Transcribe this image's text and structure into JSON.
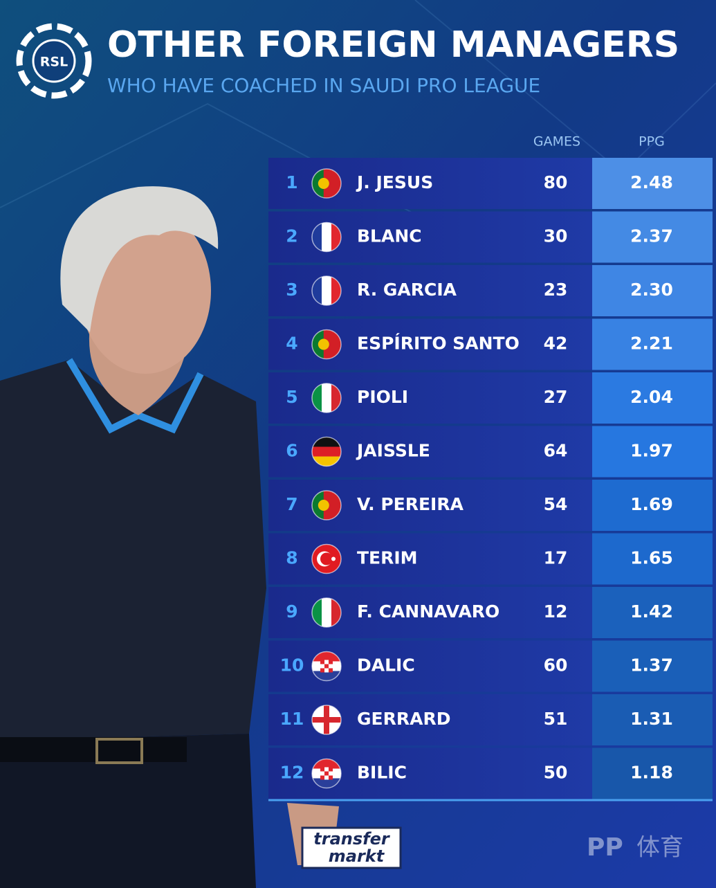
{
  "header": {
    "logo": "RSL",
    "title": "OTHER FOREIGN MANAGERS",
    "subtitle": "WHO HAVE COACHED IN SAUDI PRO LEAGUE"
  },
  "table": {
    "columns": [
      "GAMES",
      "PPG"
    ],
    "rows": [
      [
        1,
        "J. JESUS",
        80,
        "2.48"
      ],
      [
        2,
        "BLANC",
        30,
        "2.37"
      ],
      [
        3,
        "R. GARCIA",
        23,
        "2.30"
      ],
      [
        4,
        "ESPÍRITO SANTO",
        42,
        "2.21"
      ],
      [
        5,
        "PIOLI",
        27,
        "2.04"
      ],
      [
        6,
        "JAISSLE",
        64,
        "1.97"
      ],
      [
        7,
        "V. PEREIRA",
        54,
        "1.69"
      ],
      [
        8,
        "TERIM",
        17,
        "1.65"
      ],
      [
        9,
        "F. CANNAVARO",
        12,
        "1.42"
      ],
      [
        10,
        "DALIC",
        60,
        "1.37"
      ],
      [
        11,
        "GERRARD",
        51,
        "1.31"
      ],
      [
        12,
        "BILIC",
        50,
        "1.18"
      ]
    ]
  },
  "footer": {
    "brand_top": "transfer",
    "brand_bottom": "markt",
    "watermark": "PP",
    "watermark_cn": "体育"
  }
}
